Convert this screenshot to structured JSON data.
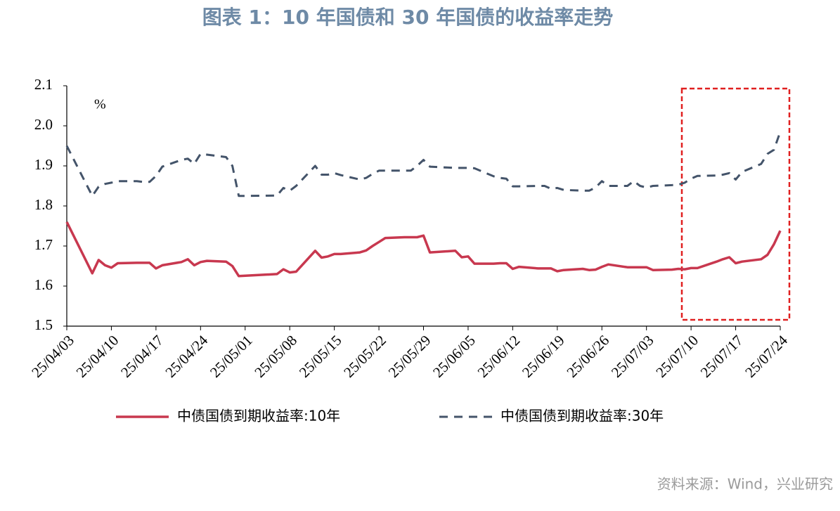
{
  "chart_data": {
    "type": "line",
    "title": "图表 1：10 年国债和 30 年国债的收益率走势",
    "y_unit": "%",
    "source": "资料来源：Wind，兴业研究",
    "x": [
      "25/04/03",
      "25/04/07",
      "25/04/08",
      "25/04/09",
      "25/04/10",
      "25/04/11",
      "25/04/14",
      "25/04/15",
      "25/04/16",
      "25/04/17",
      "25/04/18",
      "25/04/21",
      "25/04/22",
      "25/04/23",
      "25/04/24",
      "25/04/25",
      "25/04/28",
      "25/04/29",
      "25/04/30",
      "25/05/06",
      "25/05/07",
      "25/05/08",
      "25/05/09",
      "25/05/12",
      "25/05/13",
      "25/05/14",
      "25/05/15",
      "25/05/16",
      "25/05/19",
      "25/05/20",
      "25/05/21",
      "25/05/22",
      "25/05/23",
      "25/05/26",
      "25/05/27",
      "25/05/28",
      "25/05/29",
      "25/05/30",
      "25/06/03",
      "25/06/04",
      "25/06/05",
      "25/06/06",
      "25/06/09",
      "25/06/10",
      "25/06/11",
      "25/06/12",
      "25/06/13",
      "25/06/16",
      "25/06/17",
      "25/06/18",
      "25/06/19",
      "25/06/20",
      "25/06/23",
      "25/06/24",
      "25/06/25",
      "25/06/26",
      "25/06/27",
      "25/06/30",
      "25/07/01",
      "25/07/02",
      "25/07/03",
      "25/07/04",
      "25/07/07",
      "25/07/08",
      "25/07/09",
      "25/07/10",
      "25/07/11",
      "25/07/14",
      "25/07/15",
      "25/07/16",
      "25/07/17",
      "25/07/18",
      "25/07/21",
      "25/07/22",
      "25/07/23",
      "25/07/24"
    ],
    "series": [
      {
        "name": "中债国债到期收益率:10年",
        "color": "#c8384f",
        "dash": false,
        "values": [
          1.76,
          1.632,
          1.665,
          1.652,
          1.646,
          1.657,
          1.658,
          1.658,
          1.658,
          1.644,
          1.652,
          1.66,
          1.667,
          1.652,
          1.66,
          1.663,
          1.661,
          1.65,
          1.625,
          1.63,
          1.642,
          1.634,
          1.636,
          1.688,
          1.671,
          1.674,
          1.68,
          1.68,
          1.684,
          1.689,
          1.7,
          1.71,
          1.72,
          1.722,
          1.722,
          1.722,
          1.726,
          1.684,
          1.688,
          1.672,
          1.674,
          1.656,
          1.656,
          1.657,
          1.657,
          1.643,
          1.648,
          1.644,
          1.644,
          1.644,
          1.637,
          1.64,
          1.643,
          1.64,
          1.641,
          1.648,
          1.654,
          1.647,
          1.647,
          1.647,
          1.647,
          1.64,
          1.641,
          1.643,
          1.642,
          1.645,
          1.645,
          1.661,
          1.667,
          1.672,
          1.657,
          1.661,
          1.667,
          1.678,
          1.704,
          1.738
        ]
      },
      {
        "name": "中债国债到期收益率:30年",
        "color": "#44546a",
        "dash": true,
        "values": [
          1.95,
          1.825,
          1.848,
          1.855,
          1.858,
          1.862,
          1.862,
          1.86,
          1.86,
          1.875,
          1.898,
          1.915,
          1.918,
          1.905,
          1.93,
          1.928,
          1.922,
          1.9,
          1.825,
          1.826,
          1.845,
          1.838,
          1.85,
          1.9,
          1.878,
          1.878,
          1.882,
          1.877,
          1.866,
          1.87,
          1.88,
          1.888,
          1.888,
          1.888,
          1.888,
          1.9,
          1.915,
          1.898,
          1.895,
          1.895,
          1.895,
          1.894,
          1.874,
          1.87,
          1.868,
          1.849,
          1.849,
          1.85,
          1.85,
          1.843,
          1.845,
          1.84,
          1.838,
          1.838,
          1.846,
          1.862,
          1.85,
          1.85,
          1.862,
          1.85,
          1.846,
          1.85,
          1.852,
          1.853,
          1.858,
          1.868,
          1.875,
          1.876,
          1.878,
          1.882,
          1.866,
          1.885,
          1.905,
          1.93,
          1.94,
          1.985
        ]
      }
    ],
    "xlim": [
      "25/04/03",
      "25/07/24"
    ],
    "xticks": [
      "25/04/03",
      "25/04/10",
      "25/04/17",
      "25/04/24",
      "25/05/01",
      "25/05/08",
      "25/05/15",
      "25/05/22",
      "25/05/29",
      "25/06/05",
      "25/06/12",
      "25/06/19",
      "25/06/26",
      "25/07/03",
      "25/07/10",
      "25/07/17",
      "25/07/24"
    ],
    "ylim": [
      1.5,
      2.1
    ],
    "yticks": [
      1.5,
      1.6,
      1.7,
      1.8,
      1.9,
      {
        "value": 2,
        "label": "2.0"
      },
      2.1
    ],
    "grid": false,
    "legend": "bottom"
  }
}
